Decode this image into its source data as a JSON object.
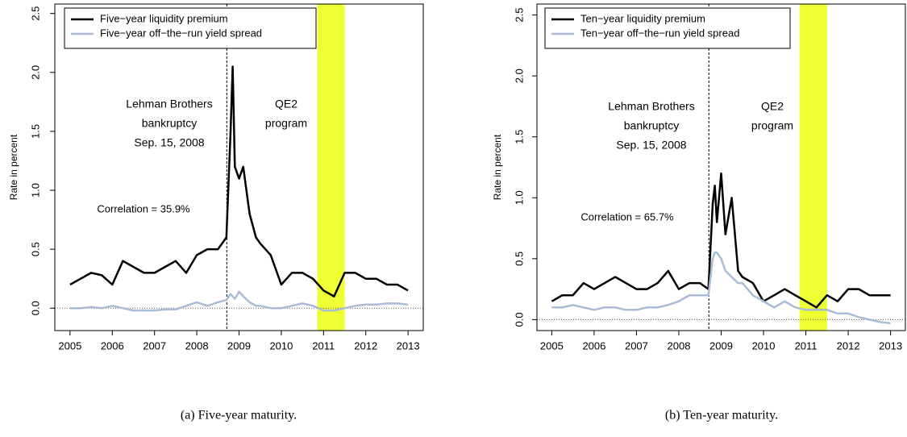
{
  "chart_data": [
    {
      "type": "line",
      "caption": "(a) Five-year maturity.",
      "ylabel": "Rate in percent",
      "x": [
        2005,
        2005.25,
        2005.5,
        2005.75,
        2006,
        2006.25,
        2006.5,
        2006.75,
        2007,
        2007.25,
        2007.5,
        2007.75,
        2008,
        2008.25,
        2008.5,
        2008.7,
        2008.8,
        2008.85,
        2008.9,
        2009,
        2009.1,
        2009.25,
        2009.4,
        2009.5,
        2009.75,
        2010,
        2010.25,
        2010.5,
        2010.75,
        2011,
        2011.25,
        2011.5,
        2011.75,
        2012,
        2012.25,
        2012.5,
        2012.75,
        2013
      ],
      "series": [
        {
          "name": "Five−year liquidity premium",
          "color": "#000000",
          "values": [
            0.2,
            0.25,
            0.3,
            0.28,
            0.2,
            0.4,
            0.35,
            0.3,
            0.3,
            0.35,
            0.4,
            0.3,
            0.45,
            0.5,
            0.5,
            0.6,
            1.5,
            2.05,
            1.2,
            1.1,
            1.2,
            0.8,
            0.6,
            0.55,
            0.45,
            0.2,
            0.3,
            0.3,
            0.25,
            0.15,
            0.1,
            0.3,
            0.3,
            0.25,
            0.25,
            0.2,
            0.2,
            0.15
          ]
        },
        {
          "name": "Five−year off−the−run yield spread",
          "color": "#a9bcd6",
          "values": [
            0,
            0,
            0.01,
            0,
            0.02,
            0,
            -0.02,
            -0.02,
            -0.02,
            -0.01,
            -0.01,
            0.02,
            0.05,
            0.02,
            0.05,
            0.07,
            0.12,
            0.1,
            0.08,
            0.14,
            0.1,
            0.05,
            0.02,
            0.02,
            0,
            0,
            0.02,
            0.04,
            0.02,
            -0.02,
            -0.02,
            0,
            0.02,
            0.03,
            0.03,
            0.04,
            0.04,
            0.03
          ]
        }
      ],
      "xlim": [
        2004.64,
        2013.36
      ],
      "xticks": [
        2005,
        2006,
        2007,
        2008,
        2009,
        2010,
        2011,
        2012,
        2013
      ],
      "ylim": [
        -0.19,
        2.58
      ],
      "yticks": [
        {
          "value": 0,
          "label": "0.0"
        },
        {
          "value": 0.5,
          "label": "0.5"
        },
        {
          "value": 1,
          "label": "1.0"
        },
        {
          "value": 1.5,
          "label": "1.5"
        },
        {
          "value": 2,
          "label": "2.0"
        },
        {
          "value": 2.5,
          "label": "2.5"
        }
      ],
      "vline": 2008.71,
      "hline": 0,
      "shade": [
        2010.85,
        2011.5
      ],
      "shade_color": "#eeff33",
      "annotations": {
        "lehman": [
          "Lehman Brothers",
          "bankruptcy",
          "Sep. 15, 2008"
        ],
        "qe2": [
          "QE2",
          "program"
        ],
        "correlation": "Correlation = 35.9%"
      },
      "legend": "top-left"
    },
    {
      "type": "line",
      "caption": "(b) Ten-year maturity.",
      "ylabel": "Rate in percent",
      "x": [
        2005,
        2005.25,
        2005.5,
        2005.75,
        2006,
        2006.25,
        2006.5,
        2006.75,
        2007,
        2007.25,
        2007.5,
        2007.75,
        2008,
        2008.25,
        2008.5,
        2008.7,
        2008.8,
        2008.85,
        2008.9,
        2009,
        2009.1,
        2009.25,
        2009.4,
        2009.5,
        2009.75,
        2010,
        2010.25,
        2010.5,
        2010.75,
        2011,
        2011.25,
        2011.5,
        2011.75,
        2012,
        2012.25,
        2012.5,
        2012.75,
        2013
      ],
      "series": [
        {
          "name": "Ten−year liquidity premium",
          "color": "#000000",
          "values": [
            0.15,
            0.2,
            0.2,
            0.3,
            0.25,
            0.3,
            0.35,
            0.3,
            0.25,
            0.25,
            0.3,
            0.4,
            0.25,
            0.3,
            0.3,
            0.25,
            0.95,
            1.1,
            0.8,
            1.2,
            0.7,
            1.0,
            0.4,
            0.35,
            0.3,
            0.15,
            0.2,
            0.25,
            0.2,
            0.15,
            0.1,
            0.2,
            0.15,
            0.25,
            0.25,
            0.2,
            0.2,
            0.2
          ]
        },
        {
          "name": "Ten−year off−the−run yield spread",
          "color": "#a9bcd6",
          "values": [
            0.1,
            0.1,
            0.12,
            0.1,
            0.08,
            0.1,
            0.1,
            0.08,
            0.08,
            0.1,
            0.1,
            0.12,
            0.15,
            0.2,
            0.2,
            0.2,
            0.5,
            0.55,
            0.55,
            0.5,
            0.4,
            0.35,
            0.3,
            0.3,
            0.2,
            0.15,
            0.1,
            0.15,
            0.1,
            0.08,
            0.08,
            0.08,
            0.05,
            0.05,
            0.02,
            0,
            -0.02,
            -0.03
          ]
        }
      ],
      "xlim": [
        2004.65,
        2013.35
      ],
      "xticks": [
        2005,
        2006,
        2007,
        2008,
        2009,
        2010,
        2011,
        2012,
        2013
      ],
      "ylim": [
        -0.09,
        2.59
      ],
      "yticks": [
        {
          "value": 0,
          "label": "0.0"
        },
        {
          "value": 0.5,
          "label": "0.5"
        },
        {
          "value": 1,
          "label": "1.0"
        },
        {
          "value": 1.5,
          "label": "1.5"
        },
        {
          "value": 2,
          "label": "2.0"
        },
        {
          "value": 2.5,
          "label": "2.5"
        }
      ],
      "vline": 2008.71,
      "hline": 0,
      "shade": [
        2010.85,
        2011.5
      ],
      "shade_color": "#eeff33",
      "annotations": {
        "lehman": [
          "Lehman Brothers",
          "bankruptcy",
          "Sep. 15, 2008"
        ],
        "qe2": [
          "QE2",
          "program"
        ],
        "correlation": "Correlation = 65.7%"
      },
      "legend": "top-left"
    }
  ]
}
